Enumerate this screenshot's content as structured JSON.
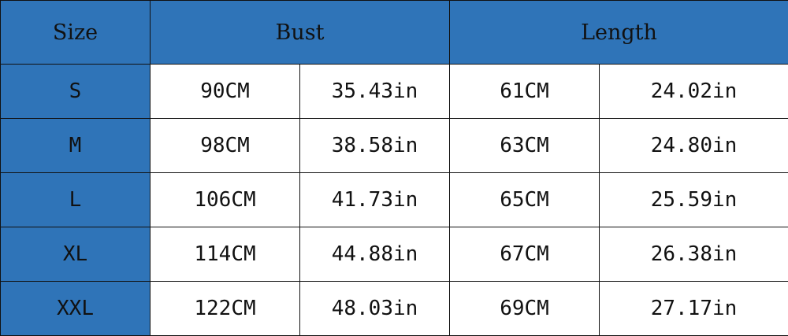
{
  "headers": {
    "size": "Size",
    "bust": "Bust",
    "length": "Length"
  },
  "rows": [
    {
      "size": "S",
      "bust_cm": "90CM",
      "bust_in": "35.43in",
      "length_cm": "61CM",
      "length_in": "24.02in"
    },
    {
      "size": "M",
      "bust_cm": "98CM",
      "bust_in": "38.58in",
      "length_cm": "63CM",
      "length_in": "24.80in"
    },
    {
      "size": "L",
      "bust_cm": "106CM",
      "bust_in": "41.73in",
      "length_cm": "65CM",
      "length_in": "25.59in"
    },
    {
      "size": "XL",
      "bust_cm": "114CM",
      "bust_in": "44.88in",
      "length_cm": "67CM",
      "length_in": "26.38in"
    },
    {
      "size": "XXL",
      "bust_cm": "122CM",
      "bust_in": "48.03in",
      "length_cm": "69CM",
      "length_in": "27.17in"
    }
  ],
  "colors": {
    "header": "#2f74b8",
    "cell": "#ffffff",
    "border": "#111111"
  }
}
